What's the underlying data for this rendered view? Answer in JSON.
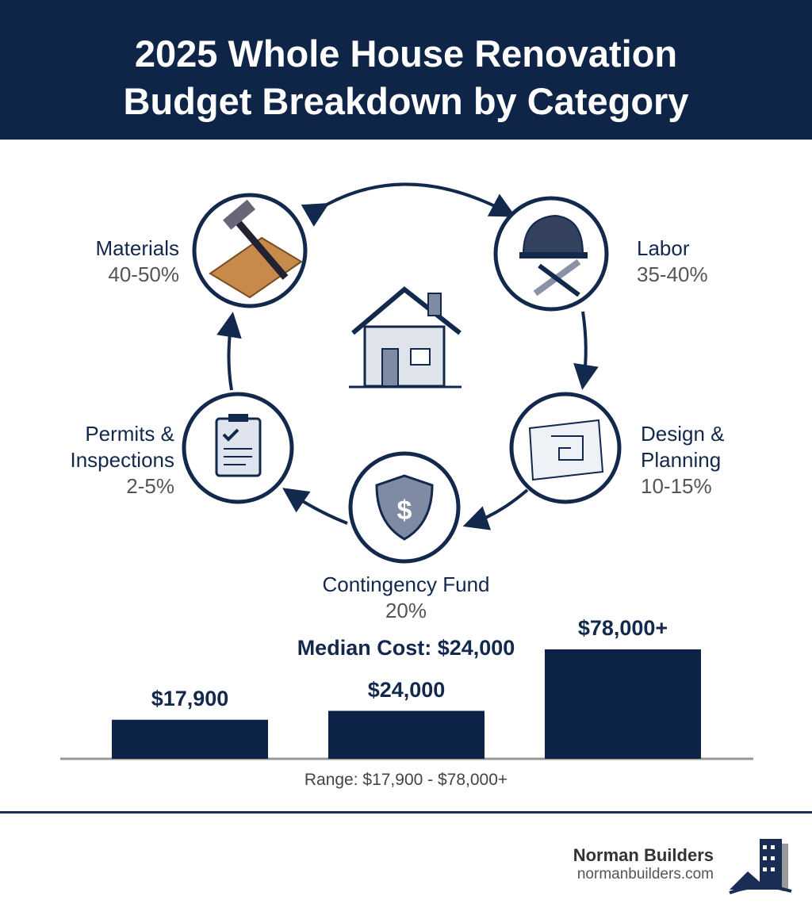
{
  "header": {
    "line1": "2025 Whole House Renovation",
    "line2": "Budget Breakdown by Category"
  },
  "categories": [
    {
      "name": "Materials",
      "percent": "40-50%",
      "icon": "hammer-wood-icon"
    },
    {
      "name": "Labor",
      "percent": "35-40%",
      "icon": "hardhat-wrench-icon"
    },
    {
      "name_line1": "Design &",
      "name_line2": "Planning",
      "percent": "10-15%",
      "icon": "blueprint-icon"
    },
    {
      "name": "Contingency Fund",
      "percent": "20%",
      "icon": "shield-dollar-icon"
    },
    {
      "name_line1": "Permits &",
      "name_line2": "Inspections",
      "percent": "2-5%",
      "icon": "clipboard-check-icon"
    }
  ],
  "center_icon": "house-icon",
  "colors": {
    "navy": "#0f2548",
    "bar": "#0c2246"
  },
  "chart_data": {
    "type": "bar",
    "categories": [
      "",
      "",
      ""
    ],
    "values": [
      17900,
      24000,
      78000
    ],
    "data_labels": [
      "$17,900",
      "$24,000",
      "$78,000+"
    ],
    "annotation": "Median Cost: $24,000",
    "caption": "Range: $17,900 - $78,000+"
  },
  "footer": {
    "brand": "Norman Builders",
    "url": "normanbuilders.com",
    "logo": "building-logo-icon"
  }
}
